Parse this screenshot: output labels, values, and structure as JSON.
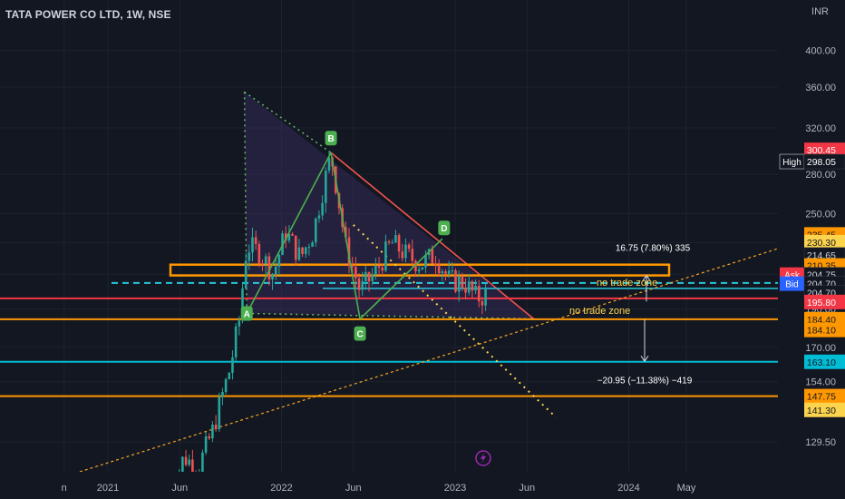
{
  "header": {
    "symbol_title": "TATA POWER CO LTD, 1W, NSE",
    "currency": "INR"
  },
  "colors": {
    "background": "#131722",
    "grid": "#1e222d",
    "up_candle": "#26a69a",
    "down_candle": "#ef5350",
    "orange": "#ff9800",
    "red": "#f23645",
    "cyan": "#00bcd4",
    "green_pattern": "#4caf50",
    "yellow": "#fbd34d"
  },
  "chart_data": {
    "type": "candlestick",
    "title": "TATA POWER CO LTD, 1W, NSE",
    "y_scale": "log",
    "ylim": [
      121,
      460
    ],
    "x_range": [
      "2020-10-01",
      "2024-07-15"
    ],
    "y_ticks": [
      400.0,
      360.0,
      320.0,
      280.0,
      250.0,
      230.0,
      210.0,
      190.0,
      170.0,
      154.0,
      129.5
    ],
    "x_ticks": [
      {
        "label": "n",
        "date": "2020-10-01"
      },
      {
        "label": "2021",
        "date": "2021-01-01"
      },
      {
        "label": "Jun",
        "date": "2021-06-01"
      },
      {
        "label": "2022",
        "date": "2022-01-01"
      },
      {
        "label": "Jun",
        "date": "2022-06-01"
      },
      {
        "label": "2023",
        "date": "2023-01-01"
      },
      {
        "label": "Jun",
        "date": "2023-06-01"
      },
      {
        "label": "2024",
        "date": "2024-01-01"
      },
      {
        "label": "May",
        "date": "2024-05-01"
      }
    ],
    "price_path": [
      [
        "2021-05-10",
        110
      ],
      [
        "2021-06-10",
        124
      ],
      [
        "2021-07-10",
        120
      ],
      [
        "2021-08-10",
        134
      ],
      [
        "2021-09-15",
        160
      ],
      [
        "2021-10-05",
        185
      ],
      [
        "2021-10-20",
        228
      ],
      [
        "2021-11-15",
        224
      ],
      [
        "2021-12-15",
        210
      ],
      [
        "2022-01-10",
        237
      ],
      [
        "2022-02-10",
        220
      ],
      [
        "2022-03-10",
        238
      ],
      [
        "2022-04-15",
        296
      ],
      [
        "2022-05-15",
        228
      ],
      [
        "2022-06-15",
        200
      ],
      [
        "2022-07-20",
        212
      ],
      [
        "2022-08-20",
        230
      ],
      [
        "2022-09-20",
        222
      ],
      [
        "2022-10-20",
        216
      ],
      [
        "2022-11-20",
        222
      ],
      [
        "2022-12-20",
        206
      ],
      [
        "2023-01-20",
        205
      ],
      [
        "2023-02-15",
        196
      ],
      [
        "2023-03-10",
        198
      ]
    ],
    "pattern_points": [
      {
        "label": "A",
        "date": "2021-10-20",
        "price": 187.5
      },
      {
        "label": "B",
        "date": "2022-04-15",
        "price": 298.05
      },
      {
        "label": "C",
        "date": "2022-06-15",
        "price": 184.5
      },
      {
        "label": "D",
        "date": "2022-12-05",
        "price": 232.5
      }
    ],
    "horizontal_lines": [
      {
        "name": "red-support",
        "price": 195.8
      },
      {
        "name": "orange-support",
        "price": 184.4
      },
      {
        "name": "cyan-support",
        "price": 163.1
      },
      {
        "name": "orange-low",
        "price": 147.75
      }
    ],
    "measure_up": {
      "text": "16.75 (7.80%) 335"
    },
    "measure_down": {
      "text": "−20.95 (−11.38%) −419"
    },
    "annotations": [
      "no trade zone",
      "no trade zone"
    ],
    "price_labels": [
      {
        "text": "300.45",
        "price": 300.45,
        "bg": "#f23645",
        "fg": "#ffffff"
      },
      {
        "text": "298.05",
        "price": 290.5,
        "bg": "#131722",
        "fg": "#ffffff",
        "tag": "High"
      },
      {
        "text": "235.45",
        "price": 235.45,
        "bg": "#ff9800",
        "fg": "#131722"
      },
      {
        "text": "230.30",
        "price": 230.3,
        "bg": "#fbd34d",
        "fg": "#131722"
      },
      {
        "text": "214.65",
        "price": 222.0,
        "bg": "#131722",
        "fg": "#d1d4dc",
        "plain": true
      },
      {
        "text": "210.35",
        "price": 215.3,
        "bg": "#ff9800",
        "fg": "#131722"
      },
      {
        "text": "204.75",
        "price": 209.7,
        "bg": "#131722",
        "fg": "#d1d4dc",
        "tag": "Ask",
        "tag_bg": "#f23645"
      },
      {
        "text": "204.70",
        "price": 204.3,
        "bg": "#131722",
        "fg": "#d1d4dc",
        "tag": "Bid",
        "tag_bg": "#2962ff"
      },
      {
        "text": "204.70",
        "price": 199.0,
        "bg": "#131722",
        "fg": "#d1d4dc",
        "plain": true
      },
      {
        "text": "195.80",
        "price": 193.8,
        "bg": "#f23645",
        "fg": "#ffffff"
      },
      {
        "text": "184.40",
        "price": 184.4,
        "bg": "#ff9800",
        "fg": "#131722"
      },
      {
        "text": "184.10",
        "price": 178.8,
        "bg": "#ff9800",
        "fg": "#131722"
      },
      {
        "text": "163.10",
        "price": 163.1,
        "bg": "#00bcd4",
        "fg": "#131722"
      },
      {
        "text": "147.75",
        "price": 147.75,
        "bg": "#ff9800",
        "fg": "#131722"
      },
      {
        "text": "141.30",
        "price": 142.0,
        "bg": "#fbd34d",
        "fg": "#131722"
      }
    ]
  }
}
